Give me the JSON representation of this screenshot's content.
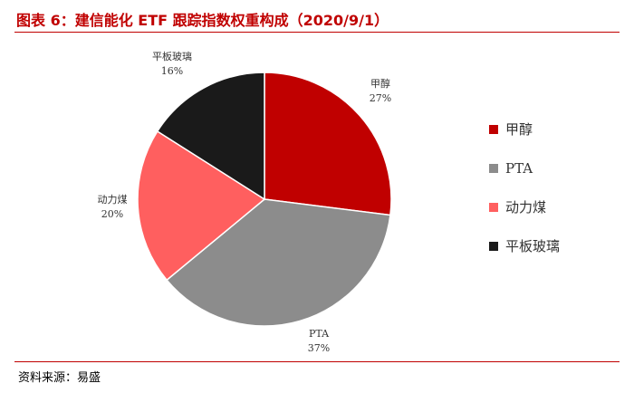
{
  "figure": {
    "title": "图表 6：建信能化 ETF 跟踪指数权重构成（2020/9/1）",
    "source": "资料来源：易盛",
    "accent_color": "#c00000"
  },
  "chart_data": {
    "type": "pie",
    "title": "",
    "categories": [
      "甲醇",
      "PTA",
      "动力煤",
      "平板玻璃"
    ],
    "values": [
      27,
      37,
      20,
      16
    ],
    "value_labels": [
      "27%",
      "37%",
      "20%",
      "16%"
    ],
    "colors": [
      "#c00000",
      "#8c8c8c",
      "#ff5f5f",
      "#1a1a1a"
    ],
    "start_angle_deg": 0,
    "direction": "clockwise",
    "legend_position": "right"
  }
}
